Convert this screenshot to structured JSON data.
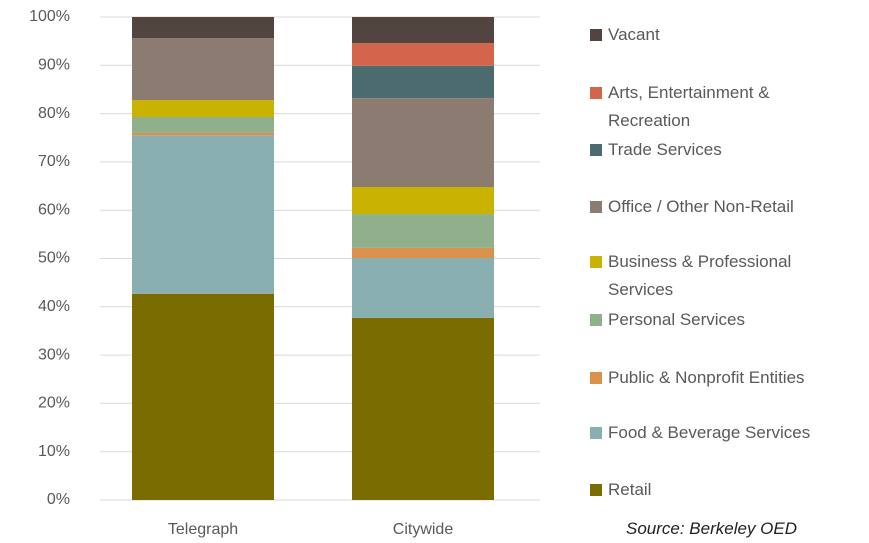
{
  "chart_data": {
    "type": "stacked_bar",
    "categories": [
      "Telegraph",
      "Citywide"
    ],
    "series": [
      {
        "name": "Retail",
        "color": "#7a6c00",
        "values": [
          42.7,
          37.7
        ]
      },
      {
        "name": "Food & Beverage Services",
        "color": "#8aafb0",
        "values": [
          32.8,
          12.4
        ]
      },
      {
        "name": "Public & Nonprofit Entities",
        "color": "#d9914c",
        "values": [
          0.5,
          2.1
        ]
      },
      {
        "name": "Personal Services",
        "color": "#8fb08a",
        "values": [
          3.3,
          7.0
        ]
      },
      {
        "name": "Business & Professional Services",
        "color": "#c9b200",
        "values": [
          3.5,
          5.6
        ]
      },
      {
        "name": "Office / Other Non-Retail",
        "color": "#8c7b70",
        "values": [
          12.8,
          18.4
        ]
      },
      {
        "name": "Trade Services",
        "color": "#4b6b6e",
        "values": [
          0,
          6.7
        ]
      },
      {
        "name": "Arts, Entertainment & Recreation",
        "color": "#d2654b",
        "values": [
          0,
          4.7
        ]
      },
      {
        "name": "Vacant",
        "color": "#524540",
        "values": [
          4.4,
          5.4
        ]
      }
    ],
    "ylim": [
      0,
      100
    ],
    "yticks": [
      {
        "value": 0,
        "label": "0%"
      },
      {
        "value": 10,
        "label": "10%"
      },
      {
        "value": 20,
        "label": "20%"
      },
      {
        "value": 30,
        "label": "30%"
      },
      {
        "value": 40,
        "label": "40%"
      },
      {
        "value": 50,
        "label": "50%"
      },
      {
        "value": 60,
        "label": "60%"
      },
      {
        "value": 70,
        "label": "70%"
      },
      {
        "value": 80,
        "label": "80%"
      },
      {
        "value": 90,
        "label": "90%"
      },
      {
        "value": 100,
        "label": "100%"
      }
    ],
    "grid": true,
    "legend": "right",
    "annotation": "Source: Berkeley OED"
  }
}
